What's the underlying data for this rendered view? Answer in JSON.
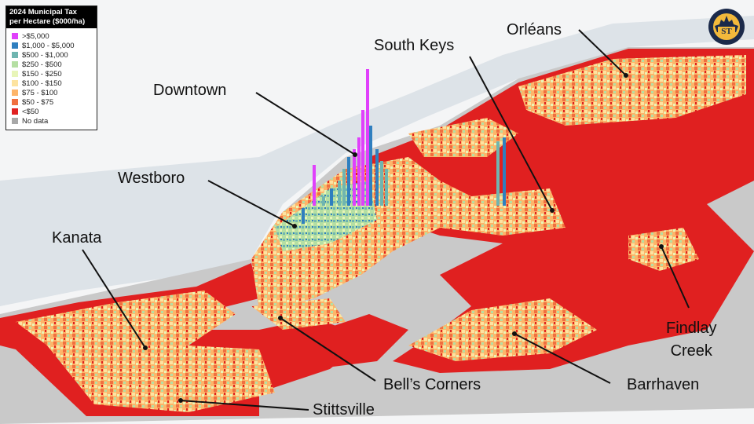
{
  "legend": {
    "title_line1": "2024 Municipal Tax",
    "title_line2": "per Hectare ($000/ha)",
    "items": [
      {
        "label": ">$5,000",
        "color": "#e040fb"
      },
      {
        "label": "$1,000 - $5,000",
        "color": "#2f7fbf"
      },
      {
        "label": "$500 - $1,000",
        "color": "#6fb5b0"
      },
      {
        "label": "$250 - $500",
        "color": "#b5dfa3"
      },
      {
        "label": "$150 - $250",
        "color": "#e8f5b8"
      },
      {
        "label": "$100 - $150",
        "color": "#fde3a0"
      },
      {
        "label": "$75 - $100",
        "color": "#fdb56a"
      },
      {
        "label": "$50 - $75",
        "color": "#f07040"
      },
      {
        "label": "<$50",
        "color": "#e02020"
      },
      {
        "label": "No data",
        "color": "#a8a8a8"
      }
    ]
  },
  "labels": {
    "downtown": "Downtown",
    "south_keys": "South Keys",
    "orleans": "Orléans",
    "westboro": "Westboro",
    "kanata": "Kanata",
    "bells_corners": "Bell’s Corners",
    "stittsville": "Stittsville",
    "barrhaven": "Barrhaven",
    "findlay_line1": "Findlay",
    "findlay_line2": "Creek"
  },
  "logo": {
    "text": "ST",
    "colors": {
      "navy": "#1b2a4a",
      "gold": "#f2b93b"
    }
  }
}
